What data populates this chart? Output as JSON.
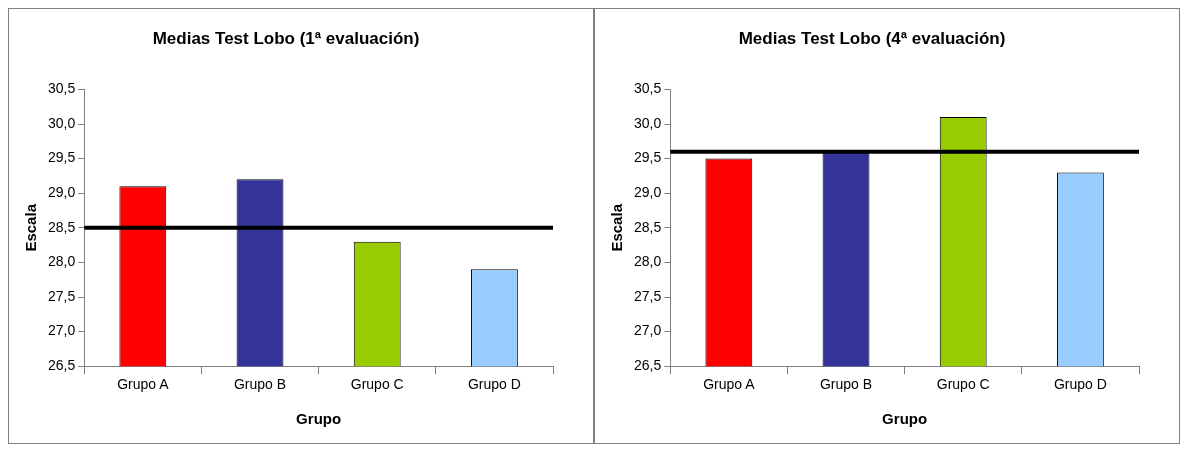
{
  "chart_data": [
    {
      "type": "bar",
      "title": "Medias Test Lobo (1ª evaluación)",
      "xlabel": "Grupo",
      "ylabel": "Escala",
      "categories": [
        "Grupo A",
        "Grupo B",
        "Grupo C",
        "Grupo D"
      ],
      "values": [
        29.1,
        29.2,
        28.3,
        27.9
      ],
      "colors": [
        "#ff0000",
        "#333399",
        "#99cc00",
        "#99ccff"
      ],
      "ylim": [
        26.5,
        30.5
      ],
      "yticks": [
        {
          "value": 26.5,
          "label": "26,5"
        },
        {
          "value": 27,
          "label": "27,0"
        },
        {
          "value": 27.5,
          "label": "27,5"
        },
        {
          "value": 28,
          "label": "28,0"
        },
        {
          "value": 28.5,
          "label": "28,5"
        },
        {
          "value": 29,
          "label": "29,0"
        },
        {
          "value": 29.5,
          "label": "29,5"
        },
        {
          "value": 30,
          "label": "30,0"
        },
        {
          "value": 30.5,
          "label": "30,5"
        }
      ],
      "grid": false,
      "legend": false,
      "ref_lines": [
        {
          "axis": "y",
          "value": 28.5,
          "color": "#000000"
        }
      ]
    },
    {
      "type": "bar",
      "title": "Medias Test Lobo (4ª evaluación)",
      "xlabel": "Grupo",
      "ylabel": "Escala",
      "categories": [
        "Grupo A",
        "Grupo B",
        "Grupo C",
        "Grupo D"
      ],
      "values": [
        29.5,
        29.6,
        30.1,
        29.3
      ],
      "colors": [
        "#ff0000",
        "#333399",
        "#99cc00",
        "#99ccff"
      ],
      "ylim": [
        26.5,
        30.5
      ],
      "yticks": [
        {
          "value": 26.5,
          "label": "26,5"
        },
        {
          "value": 27,
          "label": "27,0"
        },
        {
          "value": 27.5,
          "label": "27,5"
        },
        {
          "value": 28,
          "label": "28,0"
        },
        {
          "value": 28.5,
          "label": "28,5"
        },
        {
          "value": 29,
          "label": "29,0"
        },
        {
          "value": 29.5,
          "label": "29,5"
        },
        {
          "value": 30,
          "label": "30,0"
        },
        {
          "value": 30.5,
          "label": "30,5"
        }
      ],
      "grid": false,
      "legend": false,
      "ref_lines": [
        {
          "axis": "y",
          "value": 29.6,
          "color": "#000000"
        }
      ]
    }
  ]
}
